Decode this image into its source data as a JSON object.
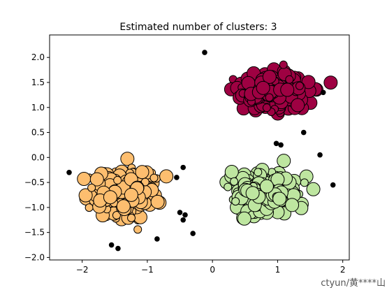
{
  "chart_data": {
    "type": "scatter",
    "title": "Estimated number of clusters: 3",
    "xlabel": "",
    "ylabel": "",
    "xlim": [
      -2.5,
      2.1
    ],
    "ylim": [
      -2.05,
      2.45
    ],
    "xticks": [
      {
        "value": -2,
        "label": "−2"
      },
      {
        "value": -1,
        "label": "−1"
      },
      {
        "value": 0,
        "label": "0"
      },
      {
        "value": 1,
        "label": "1"
      },
      {
        "value": 2,
        "label": "2"
      }
    ],
    "yticks": [
      {
        "value": -2.0,
        "label": "−2.0"
      },
      {
        "value": -1.5,
        "label": "−1.5"
      },
      {
        "value": -1.0,
        "label": "−1.0"
      },
      {
        "value": -0.5,
        "label": "−0.5"
      },
      {
        "value": 0.0,
        "label": "0.0"
      },
      {
        "value": 0.5,
        "label": "0.5"
      },
      {
        "value": 1.0,
        "label": "1.0"
      },
      {
        "value": 1.5,
        "label": "1.5"
      },
      {
        "value": 2.0,
        "label": "2.0"
      }
    ],
    "grid": false,
    "series": [
      {
        "cluster": 0,
        "color": "#9e0142",
        "center": [
          0.95,
          1.3
        ],
        "spread": [
          0.45,
          0.33
        ],
        "count": 300
      },
      {
        "cluster": 1,
        "color": "#fdbe6f",
        "center": [
          -1.35,
          -0.72
        ],
        "spread": [
          0.4,
          0.4
        ],
        "count": 300
      },
      {
        "cluster": 2,
        "color": "#bee6a0",
        "center": [
          0.82,
          -0.72
        ],
        "spread": [
          0.45,
          0.35
        ],
        "count": 300
      }
    ],
    "noise": {
      "color": "#000000",
      "points": [
        [
          -2.2,
          -0.3
        ],
        [
          -1.55,
          -1.75
        ],
        [
          -1.45,
          -1.82
        ],
        [
          -0.85,
          -1.63
        ],
        [
          -0.45,
          -0.2
        ],
        [
          -0.55,
          -0.4
        ],
        [
          -0.5,
          -1.1
        ],
        [
          -0.42,
          -1.15
        ],
        [
          -0.45,
          -1.25
        ],
        [
          -0.3,
          -1.52
        ],
        [
          -0.12,
          2.1
        ],
        [
          1.4,
          0.5
        ],
        [
          1.65,
          0.05
        ],
        [
          1.85,
          -0.55
        ],
        [
          1.7,
          1.3
        ],
        [
          1.05,
          0.25
        ],
        [
          0.98,
          0.28
        ]
      ]
    }
  },
  "watermark": "ctyun/黄****山"
}
